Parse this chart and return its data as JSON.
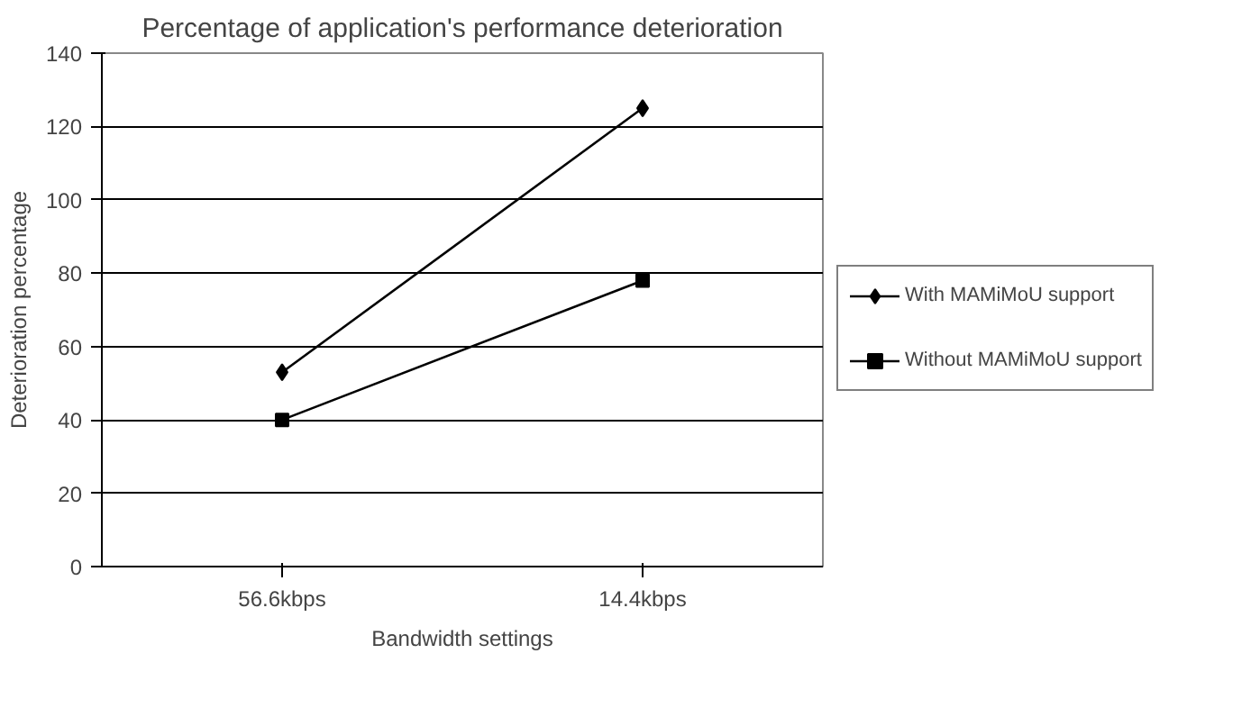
{
  "chart_data": {
    "type": "line",
    "title": "Percentage of application's performance deterioration",
    "xlabel": "Bandwidth settings",
    "ylabel": "Deterioration percentage",
    "categories": [
      "56.6kbps",
      "14.4kbps"
    ],
    "series": [
      {
        "name": "With MAMiMoU support",
        "color": "#000000",
        "marker": "diamond",
        "values": [
          53,
          125
        ]
      },
      {
        "name": "Without MAMiMoU support",
        "color": "#000000",
        "marker": "square",
        "values": [
          40,
          78
        ]
      }
    ],
    "ylim": [
      0,
      140
    ],
    "yticks": [
      0,
      20,
      40,
      60,
      80,
      100,
      120,
      140
    ],
    "grid": "y",
    "legend": "right",
    "line_style": "solid"
  }
}
